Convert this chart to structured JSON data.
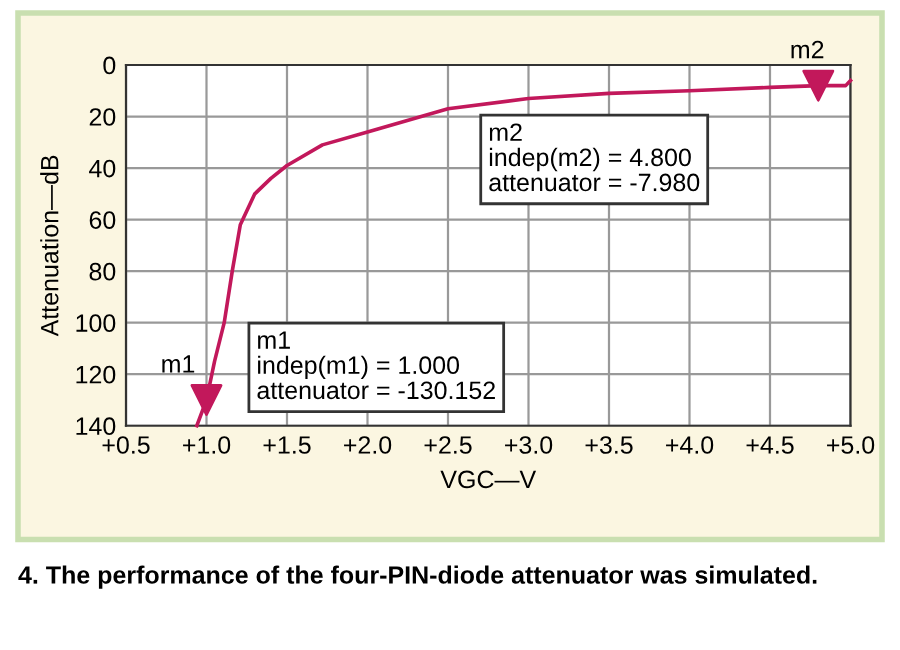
{
  "chart_data": {
    "type": "line",
    "xlabel": "VGC—V",
    "ylabel": "Attenuation—dB",
    "xlim": [
      0.5,
      5.0
    ],
    "ylim": [
      -140,
      0
    ],
    "xticks": [
      {
        "value": 0.5,
        "label": "+0.5"
      },
      {
        "value": 1.0,
        "label": "+1.0"
      },
      {
        "value": 1.5,
        "label": "+1.5"
      },
      {
        "value": 2.0,
        "label": "+2.0"
      },
      {
        "value": 2.5,
        "label": "+2.5"
      },
      {
        "value": 3.0,
        "label": "+3.0"
      },
      {
        "value": 3.5,
        "label": "+3.5"
      },
      {
        "value": 4.0,
        "label": "+4.0"
      },
      {
        "value": 4.5,
        "label": "+4.5"
      },
      {
        "value": 5.0,
        "label": "+5.0"
      }
    ],
    "yticks": [
      {
        "value": 0,
        "label": "0"
      },
      {
        "value": -20,
        "label": "20"
      },
      {
        "value": -40,
        "label": "40"
      },
      {
        "value": -60,
        "label": "60"
      },
      {
        "value": -80,
        "label": "80"
      },
      {
        "value": -100,
        "label": "100"
      },
      {
        "value": -120,
        "label": "120"
      },
      {
        "value": -140,
        "label": "140"
      }
    ],
    "grid": true,
    "series": [
      {
        "color": "#c2185b",
        "x": [
          0.94,
          1.0,
          1.05,
          1.11,
          1.16,
          1.21,
          1.3,
          1.4,
          1.5,
          1.72,
          2.0,
          2.5,
          3.0,
          3.5,
          4.0,
          4.5,
          4.8,
          4.97,
          5.0
        ],
        "values": [
          -140,
          -130,
          -115,
          -100,
          -80,
          -62,
          -50,
          -44,
          -39,
          -31,
          -26,
          -17,
          -13,
          -11,
          -10,
          -8.7,
          -8,
          -8,
          -6
        ]
      },
      {
        "type": "scatter",
        "marker": "triangle",
        "color": "#c2185b",
        "x": [
          1.0,
          4.8
        ],
        "values": [
          -130,
          -8
        ],
        "value_labels": [
          "m1",
          "m2"
        ]
      }
    ],
    "annotations": [
      "m1\nindep(m1) = 1.000\nattenuator = -130.152",
      "m2\nindep(m2) = 4.800\nattenuator = -7.980",
      "4. The performance of the four-PIN-diode attenuator was simulated."
    ]
  }
}
